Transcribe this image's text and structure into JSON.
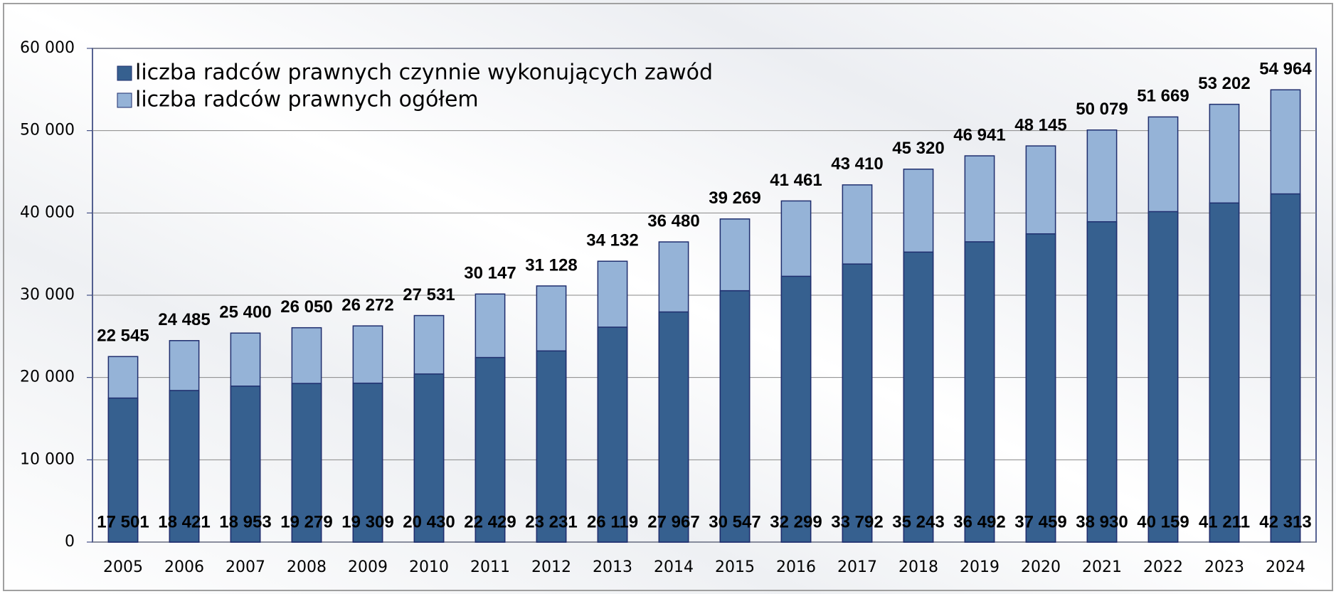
{
  "chart_data": {
    "type": "bar",
    "overlap": true,
    "categories": [
      "2005",
      "2006",
      "2007",
      "2008",
      "2009",
      "2010",
      "2011",
      "2012",
      "2013",
      "2014",
      "2015",
      "2016",
      "2017",
      "2018",
      "2019",
      "2020",
      "2021",
      "2022",
      "2023",
      "2024"
    ],
    "series": [
      {
        "name": "liczba radców prawnych ogółem",
        "color": "#95b3d7",
        "values": [
          22545,
          24485,
          25400,
          26050,
          26272,
          27531,
          30147,
          31128,
          34132,
          36480,
          39269,
          41461,
          43410,
          45320,
          46941,
          48145,
          50079,
          51669,
          53202,
          54964
        ],
        "value_labels": [
          "22 545",
          "24 485",
          "25 400",
          "26 050",
          "26 272",
          "27 531",
          "30 147",
          "31 128",
          "34 132",
          "36 480",
          "39 269",
          "41 461",
          "43 410",
          "45 320",
          "46 941",
          "48 145",
          "50 079",
          "51 669",
          "53 202",
          "54 964"
        ]
      },
      {
        "name": "liczba radców prawnych czynnie wykonujących zawód",
        "color": "#36608f",
        "values": [
          17501,
          18421,
          18953,
          19279,
          19309,
          20430,
          22429,
          23231,
          26119,
          27967,
          30547,
          32299,
          33792,
          35243,
          36492,
          37459,
          38930,
          40159,
          41211,
          42313
        ],
        "value_labels": [
          "17 501",
          "18 421",
          "18 953",
          "19 279",
          "19 309",
          "20 430",
          "22 429",
          "23 231",
          "26 119",
          "27 967",
          "30 547",
          "32 299",
          "33 792",
          "35 243",
          "36 492",
          "37 459",
          "38 930",
          "40 159",
          "41 211",
          "42 313"
        ]
      }
    ],
    "ylim": [
      0,
      60000
    ],
    "yticks": [
      0,
      {
        "value": 10000,
        "label": "10 000"
      },
      {
        "value": 20000,
        "label": "20 000"
      },
      {
        "value": 30000,
        "label": "30 000"
      },
      {
        "value": 40000,
        "label": "40 000"
      },
      {
        "value": 50000,
        "label": "50 000"
      },
      {
        "value": 60000,
        "label": "60 000"
      }
    ],
    "grid": true
  }
}
